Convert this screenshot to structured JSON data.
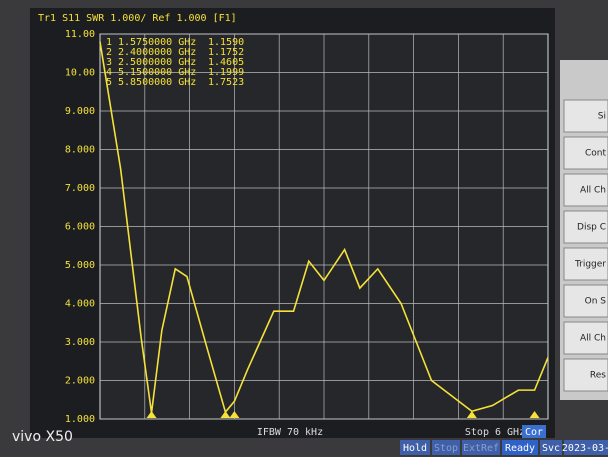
{
  "chart_data": {
    "type": "line",
    "header": "Tr1  S11  SWR 1.000/ Ref 1.000 [F1]",
    "x": [
      1.0,
      1.23,
      1.46,
      1.575,
      1.69,
      1.84,
      1.97,
      2.2,
      2.4,
      2.5,
      2.65,
      2.94,
      3.16,
      3.33,
      3.5,
      3.73,
      3.9,
      4.1,
      4.36,
      4.7,
      5.15,
      5.38,
      5.67,
      5.85,
      6.0
    ],
    "series": [
      {
        "name": "S11",
        "color": "#f5e13a",
        "values": [
          10.8,
          7.5,
          3.1,
          1.16,
          3.3,
          4.9,
          4.7,
          2.8,
          1.18,
          1.46,
          2.3,
          3.8,
          3.8,
          5.1,
          4.6,
          5.4,
          4.4,
          4.9,
          4.0,
          2.0,
          1.2,
          1.35,
          1.75,
          1.75,
          2.6
        ]
      }
    ],
    "xlim": [
      1,
      6
    ],
    "ylim": [
      1,
      11
    ],
    "yticks": [
      {
        "value": 1,
        "label": "1.000"
      },
      {
        "value": 2,
        "label": "2.000"
      },
      {
        "value": 3,
        "label": "3.000"
      },
      {
        "value": 4,
        "label": "4.000"
      },
      {
        "value": 5,
        "label": "5.000"
      },
      {
        "value": 6,
        "label": "6.000"
      },
      {
        "value": 7,
        "label": "7.000"
      },
      {
        "value": 8,
        "label": "8.000"
      },
      {
        "value": 9,
        "label": "9.000"
      },
      {
        "value": 10,
        "label": "10.00"
      },
      {
        "value": 11,
        "label": "11.00"
      }
    ],
    "grid": true,
    "markers": [
      {
        "name": "1",
        "frequency": "1.5750000 GHz",
        "value": "1.1590"
      },
      {
        "name": "2",
        "frequency": "2.4000000 GHz",
        "value": "1.1752"
      },
      {
        "name": "3",
        "frequency": "2.5000000 GHz",
        "value": "1.4605"
      },
      {
        "name": "4",
        "frequency": "5.1500000 GHz",
        "value": "1.1999"
      },
      {
        "name": "5",
        "frequency": "5.8500000 GHz",
        "value": "1.7523"
      }
    ],
    "footer": {
      "ifbw": "IFBW 70 kHz",
      "stop": "Stop 6 GHz",
      "cor": "Cor"
    }
  },
  "status_bar": [
    "Hold",
    "Stop",
    "ExtRef",
    "Ready",
    "Svc",
    "2023-03-"
  ],
  "side_buttons": [
    "Si",
    "Cont",
    "All Ch",
    "Disp C",
    "Trigger",
    "On S",
    "All Ch",
    "Res"
  ],
  "watermark": "vivo X50"
}
